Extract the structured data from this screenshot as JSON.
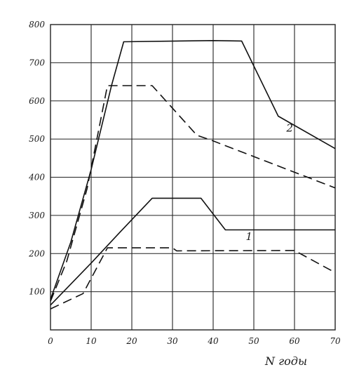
{
  "chart_data": {
    "type": "line",
    "title": "",
    "xlabel": "N годы",
    "ylabel": "",
    "xlim": [
      0,
      70
    ],
    "ylim": [
      0,
      800
    ],
    "x_ticks": [
      0,
      10,
      20,
      30,
      40,
      50,
      60,
      70
    ],
    "y_ticks": [
      100,
      200,
      300,
      400,
      500,
      600,
      700,
      800
    ],
    "grid": true,
    "series": [
      {
        "name": "2",
        "style": "solid",
        "points": [
          [
            0,
            80
          ],
          [
            5,
            230
          ],
          [
            10,
            420
          ],
          [
            15,
            640
          ],
          [
            18,
            755
          ],
          [
            40,
            758
          ],
          [
            47,
            757
          ],
          [
            56,
            560
          ],
          [
            70,
            475
          ]
        ]
      },
      {
        "name": "2",
        "style": "dashed",
        "points": [
          [
            0,
            75
          ],
          [
            4,
            180
          ],
          [
            9,
            370
          ],
          [
            14,
            640
          ],
          [
            25,
            640
          ],
          [
            36,
            510
          ],
          [
            40,
            495
          ],
          [
            70,
            372
          ]
        ]
      },
      {
        "name": "1",
        "style": "solid",
        "points": [
          [
            0,
            65
          ],
          [
            10,
            175
          ],
          [
            17,
            255
          ],
          [
            25,
            345
          ],
          [
            37,
            345
          ],
          [
            43,
            262
          ],
          [
            70,
            262
          ]
        ]
      },
      {
        "name": "1",
        "style": "dashed",
        "points": [
          [
            0,
            55
          ],
          [
            8,
            95
          ],
          [
            14,
            215
          ],
          [
            30,
            215
          ],
          [
            31,
            207
          ],
          [
            60,
            208
          ],
          [
            70,
            150
          ]
        ]
      }
    ],
    "annotations": [
      {
        "text": "2",
        "x": 58,
        "y": 520
      },
      {
        "text": "1",
        "x": 48,
        "y": 235
      }
    ]
  }
}
